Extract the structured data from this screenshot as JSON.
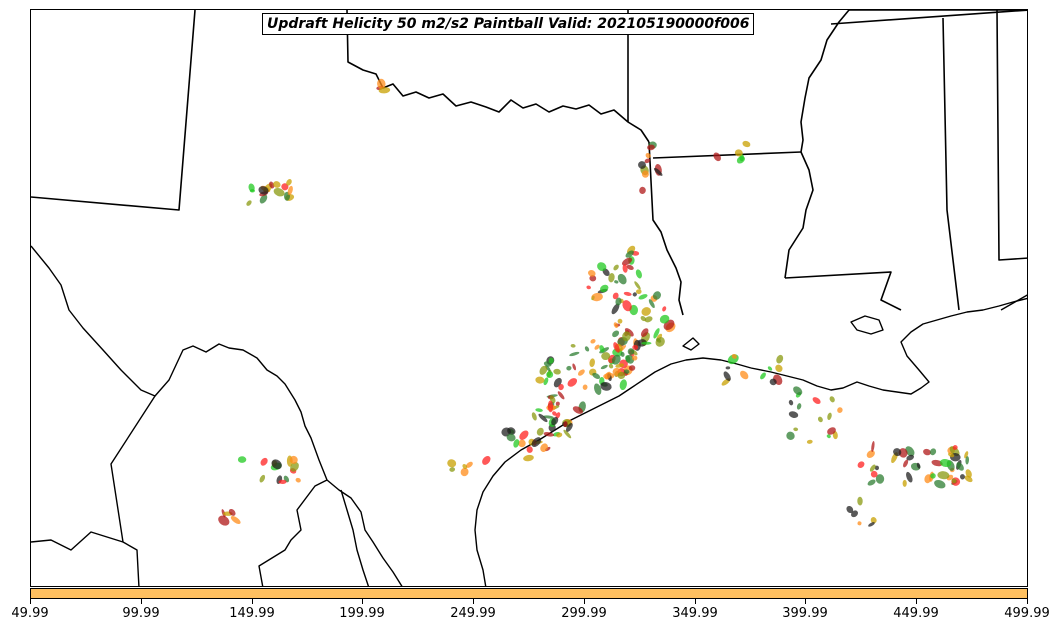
{
  "title": "Updraft Helicity 50 m2/s2 Paintball Valid: 202105190000f006",
  "colorbar": {
    "color": "#ffc060",
    "ticks": [
      "49.99",
      "99.99",
      "149.99",
      "199.99",
      "249.99",
      "299.99",
      "349.99",
      "399.99",
      "449.99",
      "499.99"
    ]
  },
  "paintball_colors": [
    "#ff2020",
    "#22c922",
    "#ff8c1a",
    "#b01818",
    "#8a9a10",
    "#2e7d32",
    "#222222",
    "#c8a000"
  ]
}
